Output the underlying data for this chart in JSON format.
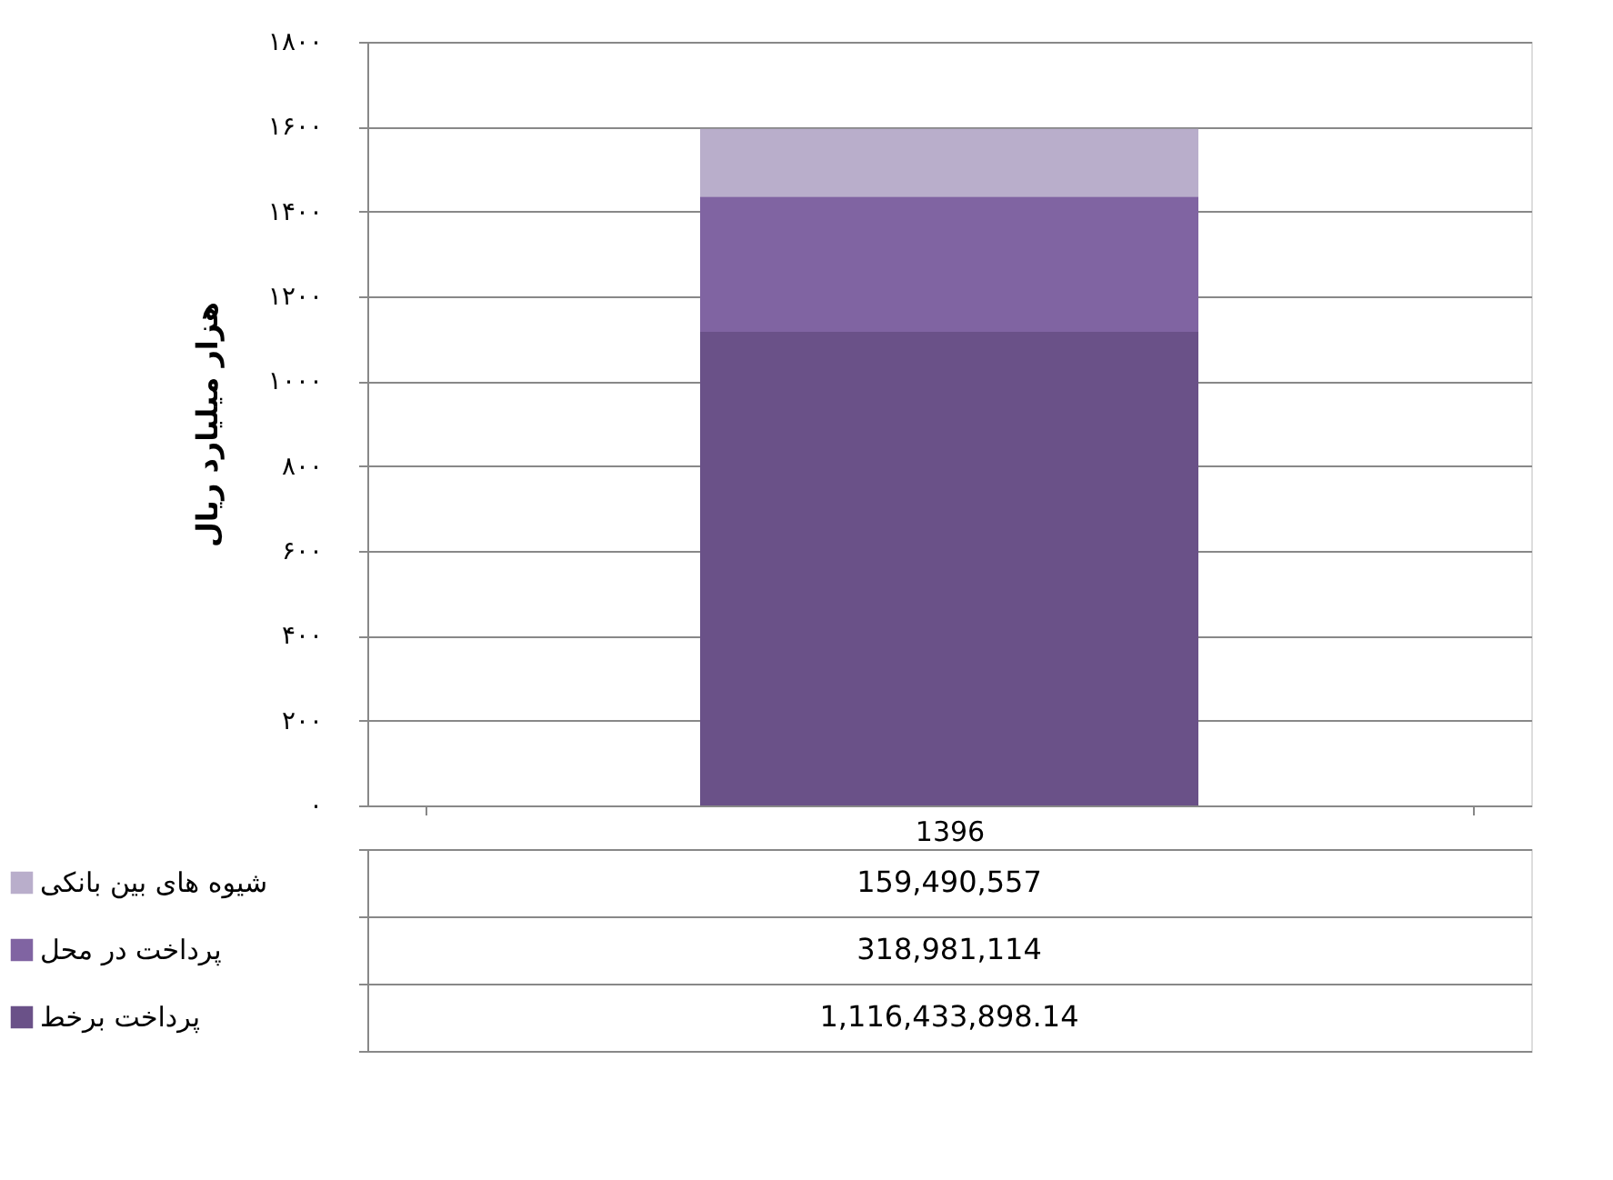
{
  "chart_data": {
    "type": "bar",
    "stacked": true,
    "ylabel": "هزار میلیارد ریال",
    "categories": [
      "1396"
    ],
    "series": [
      {
        "name": "پرداخت برخط",
        "color": "#6a5188",
        "values": [
          1116.4
        ]
      },
      {
        "name": "پرداخت در محل",
        "color": "#8064a2",
        "values": [
          319.0
        ]
      },
      {
        "name": "شیوه های بین بانکی",
        "color": "#b9aecb",
        "values": [
          159.5
        ]
      }
    ],
    "annotations": [
      "159,490,557",
      "318,981,114",
      "1,116,433,898.14"
    ],
    "ylim": [
      0,
      1800
    ],
    "yticks": [
      {
        "value": 0,
        "label": "۰"
      },
      {
        "value": 200,
        "label": "۲۰۰"
      },
      {
        "value": 400,
        "label": "۴۰۰"
      },
      {
        "value": 600,
        "label": "۶۰۰"
      },
      {
        "value": 800,
        "label": "۸۰۰"
      },
      {
        "value": 1000,
        "label": "۱۰۰۰"
      },
      {
        "value": 1200,
        "label": "۱۲۰۰"
      },
      {
        "value": 1400,
        "label": "۱۴۰۰"
      },
      {
        "value": 1600,
        "label": "۱۶۰۰"
      },
      {
        "value": 1800,
        "label": "۱۸۰۰"
      }
    ],
    "grid": "y",
    "legend": "bottom left"
  }
}
